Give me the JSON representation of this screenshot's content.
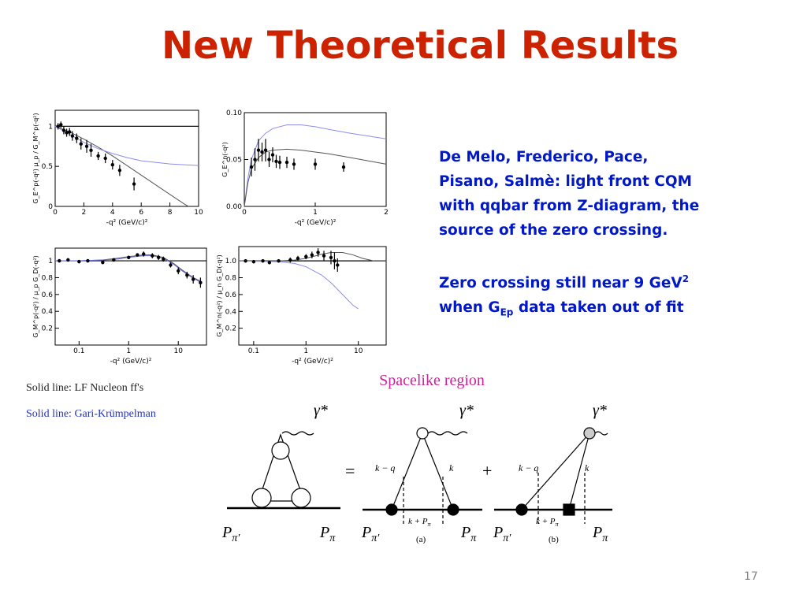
{
  "title": "New Theoretical Results",
  "plots": [
    {
      "type": "line",
      "xlabel": "-q² (GeV/c)²",
      "ylabel": "G_E^p(-q²) μ_p / G_M^p(-q²)",
      "xlim": [
        0,
        10
      ],
      "ylim": [
        0,
        1.2
      ],
      "xticks": [
        0,
        2,
        4,
        6,
        8,
        10
      ],
      "yticks": [
        0,
        {
          "value": 0.5,
          "label": "0.5"
        },
        1
      ],
      "hline": 1,
      "series": [
        {
          "color": "#555555",
          "x": [
            0,
            1,
            2,
            3,
            4,
            5,
            6,
            7,
            8,
            9,
            9.3
          ],
          "values": [
            1,
            0.93,
            0.84,
            0.74,
            0.63,
            0.51,
            0.39,
            0.27,
            0.15,
            0.03,
            0
          ]
        },
        {
          "color": "#8c8cf0",
          "x": [
            0,
            1,
            2,
            3,
            4,
            5,
            6,
            7,
            8,
            9,
            10
          ],
          "values": [
            1,
            0.9,
            0.8,
            0.72,
            0.66,
            0.61,
            0.57,
            0.55,
            0.53,
            0.52,
            0.51
          ]
        },
        {
          "color": "#000000",
          "points": true,
          "x": [
            0.2,
            0.4,
            0.6,
            0.8,
            1,
            1.2,
            1.5,
            1.8,
            2.2,
            2.5,
            3,
            3.5,
            4,
            4.5,
            5.5
          ],
          "values": [
            1,
            1.02,
            0.95,
            0.92,
            0.93,
            0.88,
            0.85,
            0.78,
            0.75,
            0.7,
            0.63,
            0.6,
            0.52,
            0.45,
            0.28
          ],
          "errors": [
            0.04,
            0.04,
            0.05,
            0.05,
            0.05,
            0.06,
            0.06,
            0.07,
            0.08,
            0.08,
            0.05,
            0.06,
            0.06,
            0.07,
            0.08
          ]
        }
      ]
    },
    {
      "type": "line",
      "xlabel": "-q² (GeV/c)²",
      "ylabel": "G_E^n(-q²)",
      "xlim": [
        0,
        2
      ],
      "ylim": [
        0,
        0.1
      ],
      "xticks": [
        0,
        1,
        2
      ],
      "yticks": [
        {
          "value": 0,
          "label": "0.00"
        },
        {
          "value": 0.05,
          "label": "0.05"
        },
        {
          "value": 0.1,
          "label": "0.10"
        }
      ],
      "series": [
        {
          "color": "#8c8cf0",
          "x": [
            0,
            0.05,
            0.1,
            0.2,
            0.3,
            0.4,
            0.6,
            0.8,
            1,
            1.2,
            1.5,
            2
          ],
          "values": [
            0,
            0.03,
            0.05,
            0.07,
            0.078,
            0.083,
            0.087,
            0.087,
            0.085,
            0.082,
            0.078,
            0.072
          ]
        },
        {
          "color": "#555555",
          "x": [
            0,
            0.05,
            0.1,
            0.2,
            0.3,
            0.4,
            0.6,
            0.8,
            1,
            1.2,
            1.5,
            2
          ],
          "values": [
            0,
            0.025,
            0.04,
            0.052,
            0.058,
            0.06,
            0.061,
            0.06,
            0.058,
            0.056,
            0.052,
            0.045
          ]
        },
        {
          "color": "#000000",
          "points": true,
          "x": [
            0.1,
            0.15,
            0.2,
            0.25,
            0.3,
            0.35,
            0.4,
            0.45,
            0.5,
            0.6,
            0.7,
            1,
            1.4
          ],
          "values": [
            0.042,
            0.05,
            0.06,
            0.058,
            0.06,
            0.05,
            0.055,
            0.048,
            0.047,
            0.047,
            0.045,
            0.045,
            0.042
          ],
          "errors": [
            0.01,
            0.012,
            0.012,
            0.01,
            0.012,
            0.008,
            0.008,
            0.007,
            0.007,
            0.006,
            0.006,
            0.006,
            0.005
          ]
        }
      ]
    },
    {
      "type": "line",
      "xlabel": "-q² (GeV/c)²",
      "ylabel": "G_M^p(-q²) / μ_p G_D(-q²)",
      "xscale": "log",
      "xlim": [
        0.033,
        37
      ],
      "ylim": [
        0,
        1.15
      ],
      "xticks": [
        {
          "value": 0.1,
          "label": "0.1"
        },
        1,
        10
      ],
      "yticks": [
        {
          "value": 0.2,
          "label": "0.2"
        },
        {
          "value": 0.4,
          "label": "0.4"
        },
        {
          "value": 0.6,
          "label": "0.6"
        },
        {
          "value": 0.8,
          "label": "0.8"
        },
        1
      ],
      "hline": 1,
      "series": [
        {
          "color": "#555555",
          "x": [
            0.033,
            0.1,
            0.3,
            0.6,
            1,
            2,
            3,
            5,
            8,
            12,
            20,
            30
          ],
          "values": [
            1,
            1,
            1.01,
            1.03,
            1.05,
            1.07,
            1.07,
            1.04,
            0.97,
            0.89,
            0.8,
            0.75
          ]
        },
        {
          "color": "#6a6ae8",
          "x": [
            0.033,
            0.1,
            0.3,
            0.6,
            1,
            2,
            3,
            5,
            8,
            12,
            20,
            30
          ],
          "values": [
            1,
            1,
            1.01,
            1.02,
            1.04,
            1.06,
            1.06,
            1.03,
            0.96,
            0.88,
            0.79,
            0.74
          ]
        },
        {
          "color": "#000000",
          "points": true,
          "x": [
            0.04,
            0.06,
            0.1,
            0.15,
            0.3,
            0.5,
            1,
            1.5,
            2,
            3,
            4,
            5,
            7,
            10,
            15,
            20,
            28
          ],
          "values": [
            1,
            1.01,
            0.99,
            1,
            0.98,
            1.01,
            1.04,
            1.07,
            1.08,
            1.06,
            1.04,
            1.02,
            0.95,
            0.88,
            0.83,
            0.78,
            0.74
          ],
          "errors": [
            0.02,
            0.02,
            0.02,
            0.02,
            0.02,
            0.02,
            0.02,
            0.02,
            0.03,
            0.03,
            0.03,
            0.03,
            0.03,
            0.04,
            0.04,
            0.05,
            0.06
          ]
        }
      ]
    },
    {
      "type": "line",
      "xlabel": "-q² (GeV/c)²",
      "ylabel": "G_M^n(-q²) / μ_n G_D(-q²)",
      "xscale": "log",
      "xlim": [
        0.052,
        34
      ],
      "ylim": [
        0,
        1.17
      ],
      "xticks": [
        {
          "value": 0.1,
          "label": "0.1"
        },
        1,
        10
      ],
      "yticks": [
        {
          "value": 0.2,
          "label": "0.2"
        },
        {
          "value": 0.4,
          "label": "0.4"
        },
        {
          "value": 0.6,
          "label": "0.6"
        },
        {
          "value": 0.8,
          "label": "0.8"
        },
        {
          "value": 1,
          "label": "1.0"
        }
      ],
      "hline": 1,
      "series": [
        {
          "color": "#555555",
          "x": [
            0.052,
            0.3,
            0.6,
            1,
            2,
            3,
            5,
            8,
            12,
            20,
            34
          ],
          "values": [
            1,
            1,
            1.01,
            1.03,
            1.08,
            1.1,
            1.1,
            1.07,
            1.03,
            1.0,
            1.0
          ]
        },
        {
          "color": "#8c8cf0",
          "x": [
            0.052,
            0.3,
            0.6,
            1,
            2,
            3,
            5,
            8,
            10
          ],
          "values": [
            1,
            0.99,
            0.97,
            0.93,
            0.83,
            0.74,
            0.6,
            0.47,
            0.43
          ]
        },
        {
          "color": "#000000",
          "points": true,
          "x": [
            0.07,
            0.1,
            0.15,
            0.2,
            0.3,
            0.5,
            0.7,
            1,
            1.3,
            1.7,
            2.2,
            3,
            3.5,
            4
          ],
          "values": [
            1,
            0.99,
            1,
            0.98,
            1,
            1.01,
            1.03,
            1.05,
            1.07,
            1.1,
            1.06,
            1.04,
            1.0,
            0.95
          ],
          "errors": [
            0.02,
            0.02,
            0.02,
            0.02,
            0.02,
            0.03,
            0.03,
            0.03,
            0.04,
            0.05,
            0.06,
            0.08,
            0.1,
            0.08
          ]
        }
      ]
    }
  ],
  "legend": [
    "Solid line: LF Nucleon ff's",
    "Solid line: Gari-Krümpelman"
  ],
  "text_block": {
    "paragraph1": [
      "De Melo, Frederico, Pace,",
      "Pisano, Salmè: light front CQM",
      "with qqbar from Z-diagram, the",
      "source of the zero crossing."
    ],
    "paragraph2": {
      "line1": {
        "text": "Zero crossing still near 9 GeV",
        "sup": "2"
      },
      "line2": {
        "before": "when G",
        "sub": "Ep",
        "after": " data taken out of fit"
      }
    }
  },
  "diagram": {
    "caption": "Spacelike region",
    "photon": "γ*",
    "equals": "=",
    "plus": "+",
    "k_minus_q": "k − q",
    "k": "k",
    "k_plus_p": {
      "main": "k + P",
      "sub": "π"
    },
    "p_in": {
      "main": "P",
      "sub": "π′"
    },
    "p_out": {
      "main": "P",
      "sub": "π"
    },
    "label_a": "(a)",
    "label_b": "(b)"
  },
  "page_number": "17"
}
